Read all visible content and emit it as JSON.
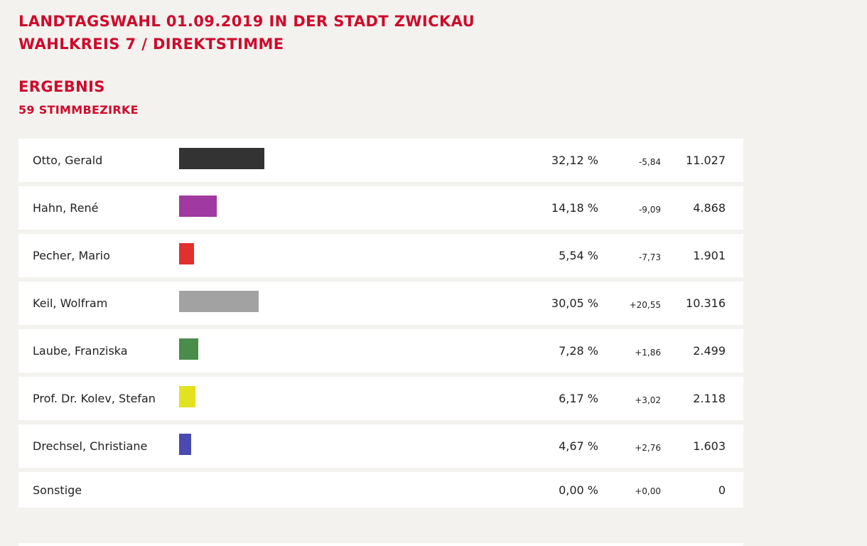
{
  "header": {
    "title_line1": "LANDTAGSWAHL 01.09.2019 IN DER STADT ZWICKAU",
    "title_line2": "WAHLKREIS 7 / DIREKTSTIMME",
    "result_label": "ERGEBNIS",
    "district_count": "59 STIMMBEZIRKE"
  },
  "chart_data": {
    "type": "bar",
    "orientation": "horizontal",
    "grid": false,
    "legend": "none",
    "categories": [
      "Otto, Gerald",
      "Hahn, René",
      "Pecher, Mario",
      "Keil, Wolfram",
      "Laube, Franziska",
      "Prof. Dr. Kolev, Stefan",
      "Drechsel, Christiane",
      "Sonstige"
    ],
    "values": [
      32.12,
      14.18,
      5.54,
      30.05,
      7.28,
      6.17,
      4.67,
      0.0
    ],
    "rows": [
      {
        "name": "Otto, Gerald",
        "value": 32.12,
        "percent_label": "32,12 %",
        "change_label": "-5,84",
        "votes_label": "11.027",
        "color": "#333333"
      },
      {
        "name": "Hahn, René",
        "value": 14.18,
        "percent_label": "14,18 %",
        "change_label": "-9,09",
        "votes_label": "4.868",
        "color": "#a03aa0"
      },
      {
        "name": "Pecher, Mario",
        "value": 5.54,
        "percent_label": "5,54 %",
        "change_label": "-7,73",
        "votes_label": "1.901",
        "color": "#e03030"
      },
      {
        "name": "Keil, Wolfram",
        "value": 30.05,
        "percent_label": "30,05 %",
        "change_label": "+20,55",
        "votes_label": "10.316",
        "color": "#a2a2a2"
      },
      {
        "name": "Laube, Franziska",
        "value": 7.28,
        "percent_label": "7,28 %",
        "change_label": "+1,86",
        "votes_label": "2.499",
        "color": "#4a8c4a"
      },
      {
        "name": "Prof. Dr. Kolev, Stefan",
        "value": 6.17,
        "percent_label": "6,17 %",
        "change_label": "+3,02",
        "votes_label": "2.118",
        "color": "#e2e220"
      },
      {
        "name": "Drechsel, Christiane",
        "value": 4.67,
        "percent_label": "4,67 %",
        "change_label": "+2,76",
        "votes_label": "1.603",
        "color": "#4a4ab0"
      },
      {
        "name": "Sonstige",
        "value": 0.0,
        "percent_label": "0,00 %",
        "change_label": "+0,00",
        "votes_label": "0",
        "color": ""
      }
    ]
  }
}
